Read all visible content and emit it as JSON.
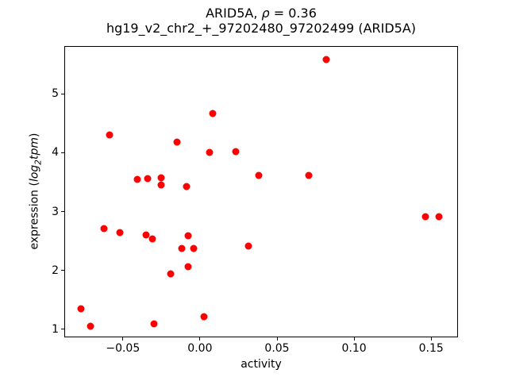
{
  "text": {
    "title": {
      "prefix": "ARID5A, ",
      "rho": "ρ",
      "suffix": " = 0.36"
    },
    "subtitle": "hg19_v2_chr2_+_97202480_97202499 (ARID5A)",
    "xlabel": "activity",
    "ylabel": {
      "prefix": "expression (",
      "log": "log",
      "sub": "2",
      "word": "tpm",
      "suffix": ")"
    }
  },
  "chart_data": {
    "type": "scatter",
    "title": "ARID5A, ρ = 0.36",
    "subtitle": "hg19_v2_chr2_+_97202480_97202499 (ARID5A)",
    "xlabel": "activity",
    "ylabel": "expression (log2tpm)",
    "marker_color": "#ff0000",
    "axes_color": "#000000",
    "grid": false,
    "legend": null,
    "xlim": [
      -0.088,
      0.1674
    ],
    "ylim": [
      0.865,
      5.812
    ],
    "x_ticks": [
      -0.05,
      0.0,
      0.05,
      0.1,
      0.15
    ],
    "x_tick_labels": [
      "−0.05",
      "0.00",
      "0.05",
      "0.10",
      "0.15"
    ],
    "y_ticks": [
      1,
      2,
      3,
      4,
      5
    ],
    "y_tick_labels": [
      "1",
      "2",
      "3",
      "4",
      "5"
    ],
    "points": [
      [
        0.0081,
        4.66
      ],
      [
        -0.0585,
        4.3
      ],
      [
        -0.0148,
        4.18
      ],
      [
        0.0063,
        4.0
      ],
      [
        0.023,
        4.02
      ],
      [
        0.0379,
        3.61
      ],
      [
        -0.0405,
        3.55
      ],
      [
        -0.0341,
        3.56
      ],
      [
        -0.0251,
        3.57
      ],
      [
        -0.0251,
        3.45
      ],
      [
        -0.0088,
        3.43
      ],
      [
        0.0817,
        5.58
      ],
      [
        0.0707,
        3.61
      ],
      [
        -0.0623,
        2.71
      ],
      [
        -0.0517,
        2.65
      ],
      [
        -0.035,
        2.61
      ],
      [
        -0.0307,
        2.54
      ],
      [
        -0.0076,
        2.59
      ],
      [
        -0.0118,
        2.38
      ],
      [
        -0.0041,
        2.38
      ],
      [
        -0.0076,
        2.07
      ],
      [
        -0.0191,
        1.95
      ],
      [
        0.0313,
        2.42
      ],
      [
        -0.0771,
        1.35
      ],
      [
        -0.0709,
        1.06
      ],
      [
        -0.0297,
        1.1
      ],
      [
        0.0027,
        1.21
      ],
      [
        0.1461,
        2.92
      ],
      [
        0.1548,
        2.92
      ]
    ]
  }
}
